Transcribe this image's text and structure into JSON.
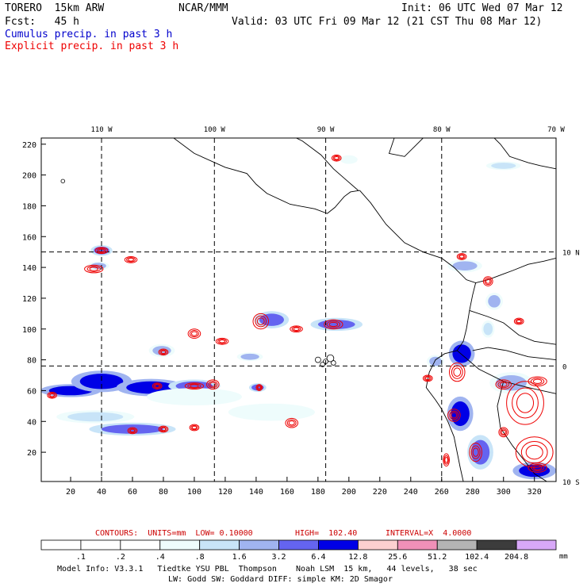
{
  "header": {
    "model": "TORERO  15km ARW",
    "org": "NCAR/MMM",
    "init": "Init: 06 UTC Wed 07 Mar 12",
    "fcst": "Fcst:   45 h",
    "valid": "Valid: 03 UTC Fri 09 Mar 12 (21 CST Thu 08 Mar 12)",
    "field1": "Cumulus precip. in past 3 h",
    "field2": "Explicit precip. in past 3 h",
    "field1_color": "#0000cc",
    "field2_color": "#ee0000"
  },
  "contour_info": {
    "contours": "CONTOURS:  UNITS=mm  LOW= 0.10000",
    "high": "HIGH=  102.40",
    "interval": "INTERVAL=X  4.0000",
    "color": "#cc0000"
  },
  "colorbar": {
    "unit": "mm",
    "ticks": [
      ".1",
      ".2",
      ".4",
      ".8",
      "1.6",
      "3.2",
      "6.4",
      "12.8",
      "25.6",
      "51.2",
      "102.4",
      "204.8"
    ],
    "colors": [
      "#ffffff",
      "#ffffff",
      "#ffffff",
      "#eefcfc",
      "#c8e4f8",
      "#a0b4f0",
      "#6464f0",
      "#0000e6",
      "#fcd0d0",
      "#f090b8",
      "#b4b4b4",
      "#3c3c3c",
      "#d8a8f8"
    ]
  },
  "footer": {
    "line1": "Model Info: V3.3.1   Tiedtke YSU PBL  Thompson    Noah LSM  15 km,   44 levels,   38 sec",
    "line2": "LW: Godd SW: Goddard DIFF: simple KM: 2D Smagor"
  },
  "chart_data": {
    "type": "heatmap",
    "x_ticks": [
      20,
      40,
      60,
      80,
      100,
      120,
      140,
      160,
      180,
      200,
      220,
      240,
      260,
      280,
      300,
      320
    ],
    "y_ticks": [
      20,
      40,
      60,
      80,
      100,
      120,
      140,
      160,
      180,
      200,
      220
    ],
    "xlim": [
      1,
      334
    ],
    "ylim": [
      1,
      224
    ],
    "lon_labels": [
      {
        "text": "110 W",
        "x": 40
      },
      {
        "text": "100 W",
        "x": 113
      },
      {
        "text": "90 W",
        "x": 185
      },
      {
        "text": "80 W",
        "x": 260
      },
      {
        "text": "70 W",
        "x": 334
      }
    ],
    "lat_labels": [
      {
        "text": "10 N",
        "y": 150
      },
      {
        "text": "0",
        "y": 76
      },
      {
        "text": "10 S",
        "y": 1
      }
    ],
    "grid_lines": {
      "x": [
        40,
        113,
        185,
        260
      ],
      "y": [
        150,
        76
      ]
    },
    "cumulus_cells": [
      {
        "x": 40,
        "y": 151,
        "rx": 5,
        "ry": 2.5,
        "level": 6
      },
      {
        "x": 38,
        "y": 141,
        "rx": 5,
        "ry": 2,
        "level": 5
      },
      {
        "x": 20,
        "y": 60,
        "rx": 14,
        "ry": 3,
        "level": 7
      },
      {
        "x": 40,
        "y": 66,
        "rx": 14,
        "ry": 5,
        "level": 7
      },
      {
        "x": 72,
        "y": 62,
        "rx": 16,
        "ry": 4,
        "level": 7
      },
      {
        "x": 100,
        "y": 63,
        "rx": 12,
        "ry": 3,
        "level": 6
      },
      {
        "x": 60,
        "y": 35,
        "rx": 20,
        "ry": 3,
        "level": 6
      },
      {
        "x": 36,
        "y": 43,
        "rx": 18,
        "ry": 3,
        "level": 4
      },
      {
        "x": 79,
        "y": 86,
        "rx": 6,
        "ry": 3,
        "level": 5
      },
      {
        "x": 136,
        "y": 82,
        "rx": 6,
        "ry": 2,
        "level": 5
      },
      {
        "x": 150,
        "y": 106,
        "rx": 8,
        "ry": 4,
        "level": 6
      },
      {
        "x": 192,
        "y": 103,
        "rx": 12,
        "ry": 3,
        "level": 6
      },
      {
        "x": 141,
        "y": 62,
        "rx": 4,
        "ry": 2,
        "level": 6
      },
      {
        "x": 100,
        "y": 56,
        "rx": 22,
        "ry": 4,
        "level": 3
      },
      {
        "x": 150,
        "y": 46,
        "rx": 20,
        "ry": 4,
        "level": 3
      },
      {
        "x": 273,
        "y": 84,
        "rx": 6,
        "ry": 6,
        "level": 7
      },
      {
        "x": 272,
        "y": 45,
        "rx": 6,
        "ry": 8,
        "level": 7
      },
      {
        "x": 285,
        "y": 20,
        "rx": 6,
        "ry": 8,
        "level": 6
      },
      {
        "x": 294,
        "y": 118,
        "rx": 4,
        "ry": 4,
        "level": 5
      },
      {
        "x": 305,
        "y": 65,
        "rx": 10,
        "ry": 5,
        "level": 5
      },
      {
        "x": 320,
        "y": 8,
        "rx": 10,
        "ry": 4,
        "level": 7
      },
      {
        "x": 275,
        "y": 141,
        "rx": 8,
        "ry": 3,
        "level": 5
      },
      {
        "x": 300,
        "y": 206,
        "rx": 8,
        "ry": 2,
        "level": 4
      },
      {
        "x": 256,
        "y": 79,
        "rx": 4,
        "ry": 3,
        "level": 5
      },
      {
        "x": 200,
        "y": 210,
        "rx": 4,
        "ry": 2,
        "level": 3
      },
      {
        "x": 290,
        "y": 100,
        "rx": 3,
        "ry": 4,
        "level": 4
      }
    ],
    "explicit_rings": [
      {
        "x": 40,
        "y": 151,
        "rx": 4,
        "ry": 2
      },
      {
        "x": 35,
        "y": 139,
        "rx": 6,
        "ry": 2.5
      },
      {
        "x": 59,
        "y": 145,
        "rx": 4,
        "ry": 2
      },
      {
        "x": 8,
        "y": 57,
        "rx": 3,
        "ry": 2
      },
      {
        "x": 112,
        "y": 64,
        "rx": 4,
        "ry": 3
      },
      {
        "x": 100,
        "y": 63,
        "rx": 6,
        "ry": 2
      },
      {
        "x": 76,
        "y": 63,
        "rx": 3,
        "ry": 2
      },
      {
        "x": 60,
        "y": 34,
        "rx": 3,
        "ry": 2
      },
      {
        "x": 80,
        "y": 35,
        "rx": 3,
        "ry": 2
      },
      {
        "x": 100,
        "y": 36,
        "rx": 3,
        "ry": 2
      },
      {
        "x": 80,
        "y": 85,
        "rx": 3,
        "ry": 2
      },
      {
        "x": 100,
        "y": 97,
        "rx": 4,
        "ry": 3
      },
      {
        "x": 118,
        "y": 92,
        "rx": 4,
        "ry": 2
      },
      {
        "x": 143,
        "y": 105,
        "rx": 5,
        "ry": 5
      },
      {
        "x": 166,
        "y": 100,
        "rx": 4,
        "ry": 2
      },
      {
        "x": 190,
        "y": 103,
        "rx": 6,
        "ry": 3
      },
      {
        "x": 192,
        "y": 211,
        "rx": 3,
        "ry": 2
      },
      {
        "x": 163,
        "y": 39,
        "rx": 4,
        "ry": 3
      },
      {
        "x": 142,
        "y": 62,
        "rx": 2,
        "ry": 2
      },
      {
        "x": 251,
        "y": 68,
        "rx": 3,
        "ry": 2
      },
      {
        "x": 270,
        "y": 72,
        "rx": 5,
        "ry": 6
      },
      {
        "x": 268,
        "y": 44,
        "rx": 4,
        "ry": 4
      },
      {
        "x": 282,
        "y": 20,
        "rx": 4,
        "ry": 6
      },
      {
        "x": 300,
        "y": 64,
        "rx": 5,
        "ry": 3
      },
      {
        "x": 314,
        "y": 52,
        "rx": 12,
        "ry": 14
      },
      {
        "x": 320,
        "y": 20,
        "rx": 12,
        "ry": 10
      },
      {
        "x": 322,
        "y": 10,
        "rx": 6,
        "ry": 3
      },
      {
        "x": 290,
        "y": 131,
        "rx": 3,
        "ry": 3
      },
      {
        "x": 310,
        "y": 105,
        "rx": 3,
        "ry": 2
      },
      {
        "x": 263,
        "y": 15,
        "rx": 2,
        "ry": 4
      },
      {
        "x": 300,
        "y": 33,
        "rx": 3,
        "ry": 3
      },
      {
        "x": 322,
        "y": 66,
        "rx": 6,
        "ry": 3
      },
      {
        "x": 273,
        "y": 147,
        "rx": 3,
        "ry": 2
      }
    ],
    "coastlines": [
      [
        [
          84,
          226
        ],
        [
          100,
          214
        ],
        [
          120,
          205
        ],
        [
          134,
          201
        ],
        [
          140,
          194
        ],
        [
          147,
          188
        ],
        [
          162,
          181
        ],
        [
          178,
          178
        ],
        [
          186,
          175
        ],
        [
          191,
          179
        ],
        [
          197,
          186
        ],
        [
          201,
          189
        ],
        [
          207,
          190
        ]
      ],
      [
        [
          162,
          226
        ],
        [
          170,
          222
        ],
        [
          182,
          213
        ],
        [
          190,
          204
        ],
        [
          198,
          197
        ],
        [
          206,
          190
        ]
      ],
      [
        [
          230,
          226
        ],
        [
          226,
          214
        ],
        [
          236,
          212
        ],
        [
          244,
          220
        ],
        [
          250,
          226
        ]
      ],
      [
        [
          207,
          190
        ],
        [
          214,
          182
        ],
        [
          224,
          168
        ],
        [
          236,
          156
        ],
        [
          248,
          150
        ],
        [
          260,
          146
        ],
        [
          268,
          140
        ],
        [
          276,
          132
        ],
        [
          282,
          130
        ],
        [
          290,
          132
        ],
        [
          298,
          135
        ],
        [
          306,
          138
        ],
        [
          316,
          142
        ],
        [
          326,
          144
        ],
        [
          334,
          146
        ]
      ],
      [
        [
          292,
          226
        ],
        [
          298,
          220
        ],
        [
          304,
          212
        ],
        [
          316,
          208
        ],
        [
          324,
          206
        ],
        [
          334,
          204
        ]
      ],
      [
        [
          282,
          130
        ],
        [
          280,
          122
        ],
        [
          278,
          112
        ],
        [
          276,
          100
        ],
        [
          274,
          92
        ],
        [
          270,
          86
        ],
        [
          262,
          84
        ],
        [
          256,
          80
        ],
        [
          252,
          72
        ],
        [
          250,
          62
        ],
        [
          256,
          54
        ],
        [
          260,
          48
        ],
        [
          264,
          40
        ],
        [
          268,
          30
        ],
        [
          270,
          20
        ],
        [
          272,
          10
        ],
        [
          274,
          1
        ]
      ],
      [
        [
          334,
          80
        ],
        [
          316,
          82
        ],
        [
          302,
          86
        ],
        [
          290,
          88
        ],
        [
          280,
          86
        ]
      ],
      [
        [
          270,
          86
        ],
        [
          284,
          74
        ],
        [
          300,
          66
        ],
        [
          316,
          62
        ],
        [
          334,
          58
        ]
      ],
      [
        [
          300,
          66
        ],
        [
          296,
          50
        ],
        [
          298,
          36
        ],
        [
          306,
          24
        ],
        [
          314,
          14
        ],
        [
          320,
          6
        ],
        [
          328,
          1
        ]
      ],
      [
        [
          278,
          112
        ],
        [
          290,
          108
        ],
        [
          300,
          104
        ],
        [
          310,
          96
        ],
        [
          320,
          92
        ],
        [
          334,
          90
        ]
      ]
    ],
    "islands": [
      {
        "x": 180,
        "y": 80,
        "r": 1.2
      },
      {
        "x": 185,
        "y": 79,
        "r": 1
      },
      {
        "x": 188,
        "y": 81,
        "r": 1.5
      },
      {
        "x": 183,
        "y": 77,
        "r": 1
      },
      {
        "x": 190,
        "y": 78,
        "r": 1
      },
      {
        "x": 15,
        "y": 196,
        "r": 0.8
      }
    ]
  }
}
